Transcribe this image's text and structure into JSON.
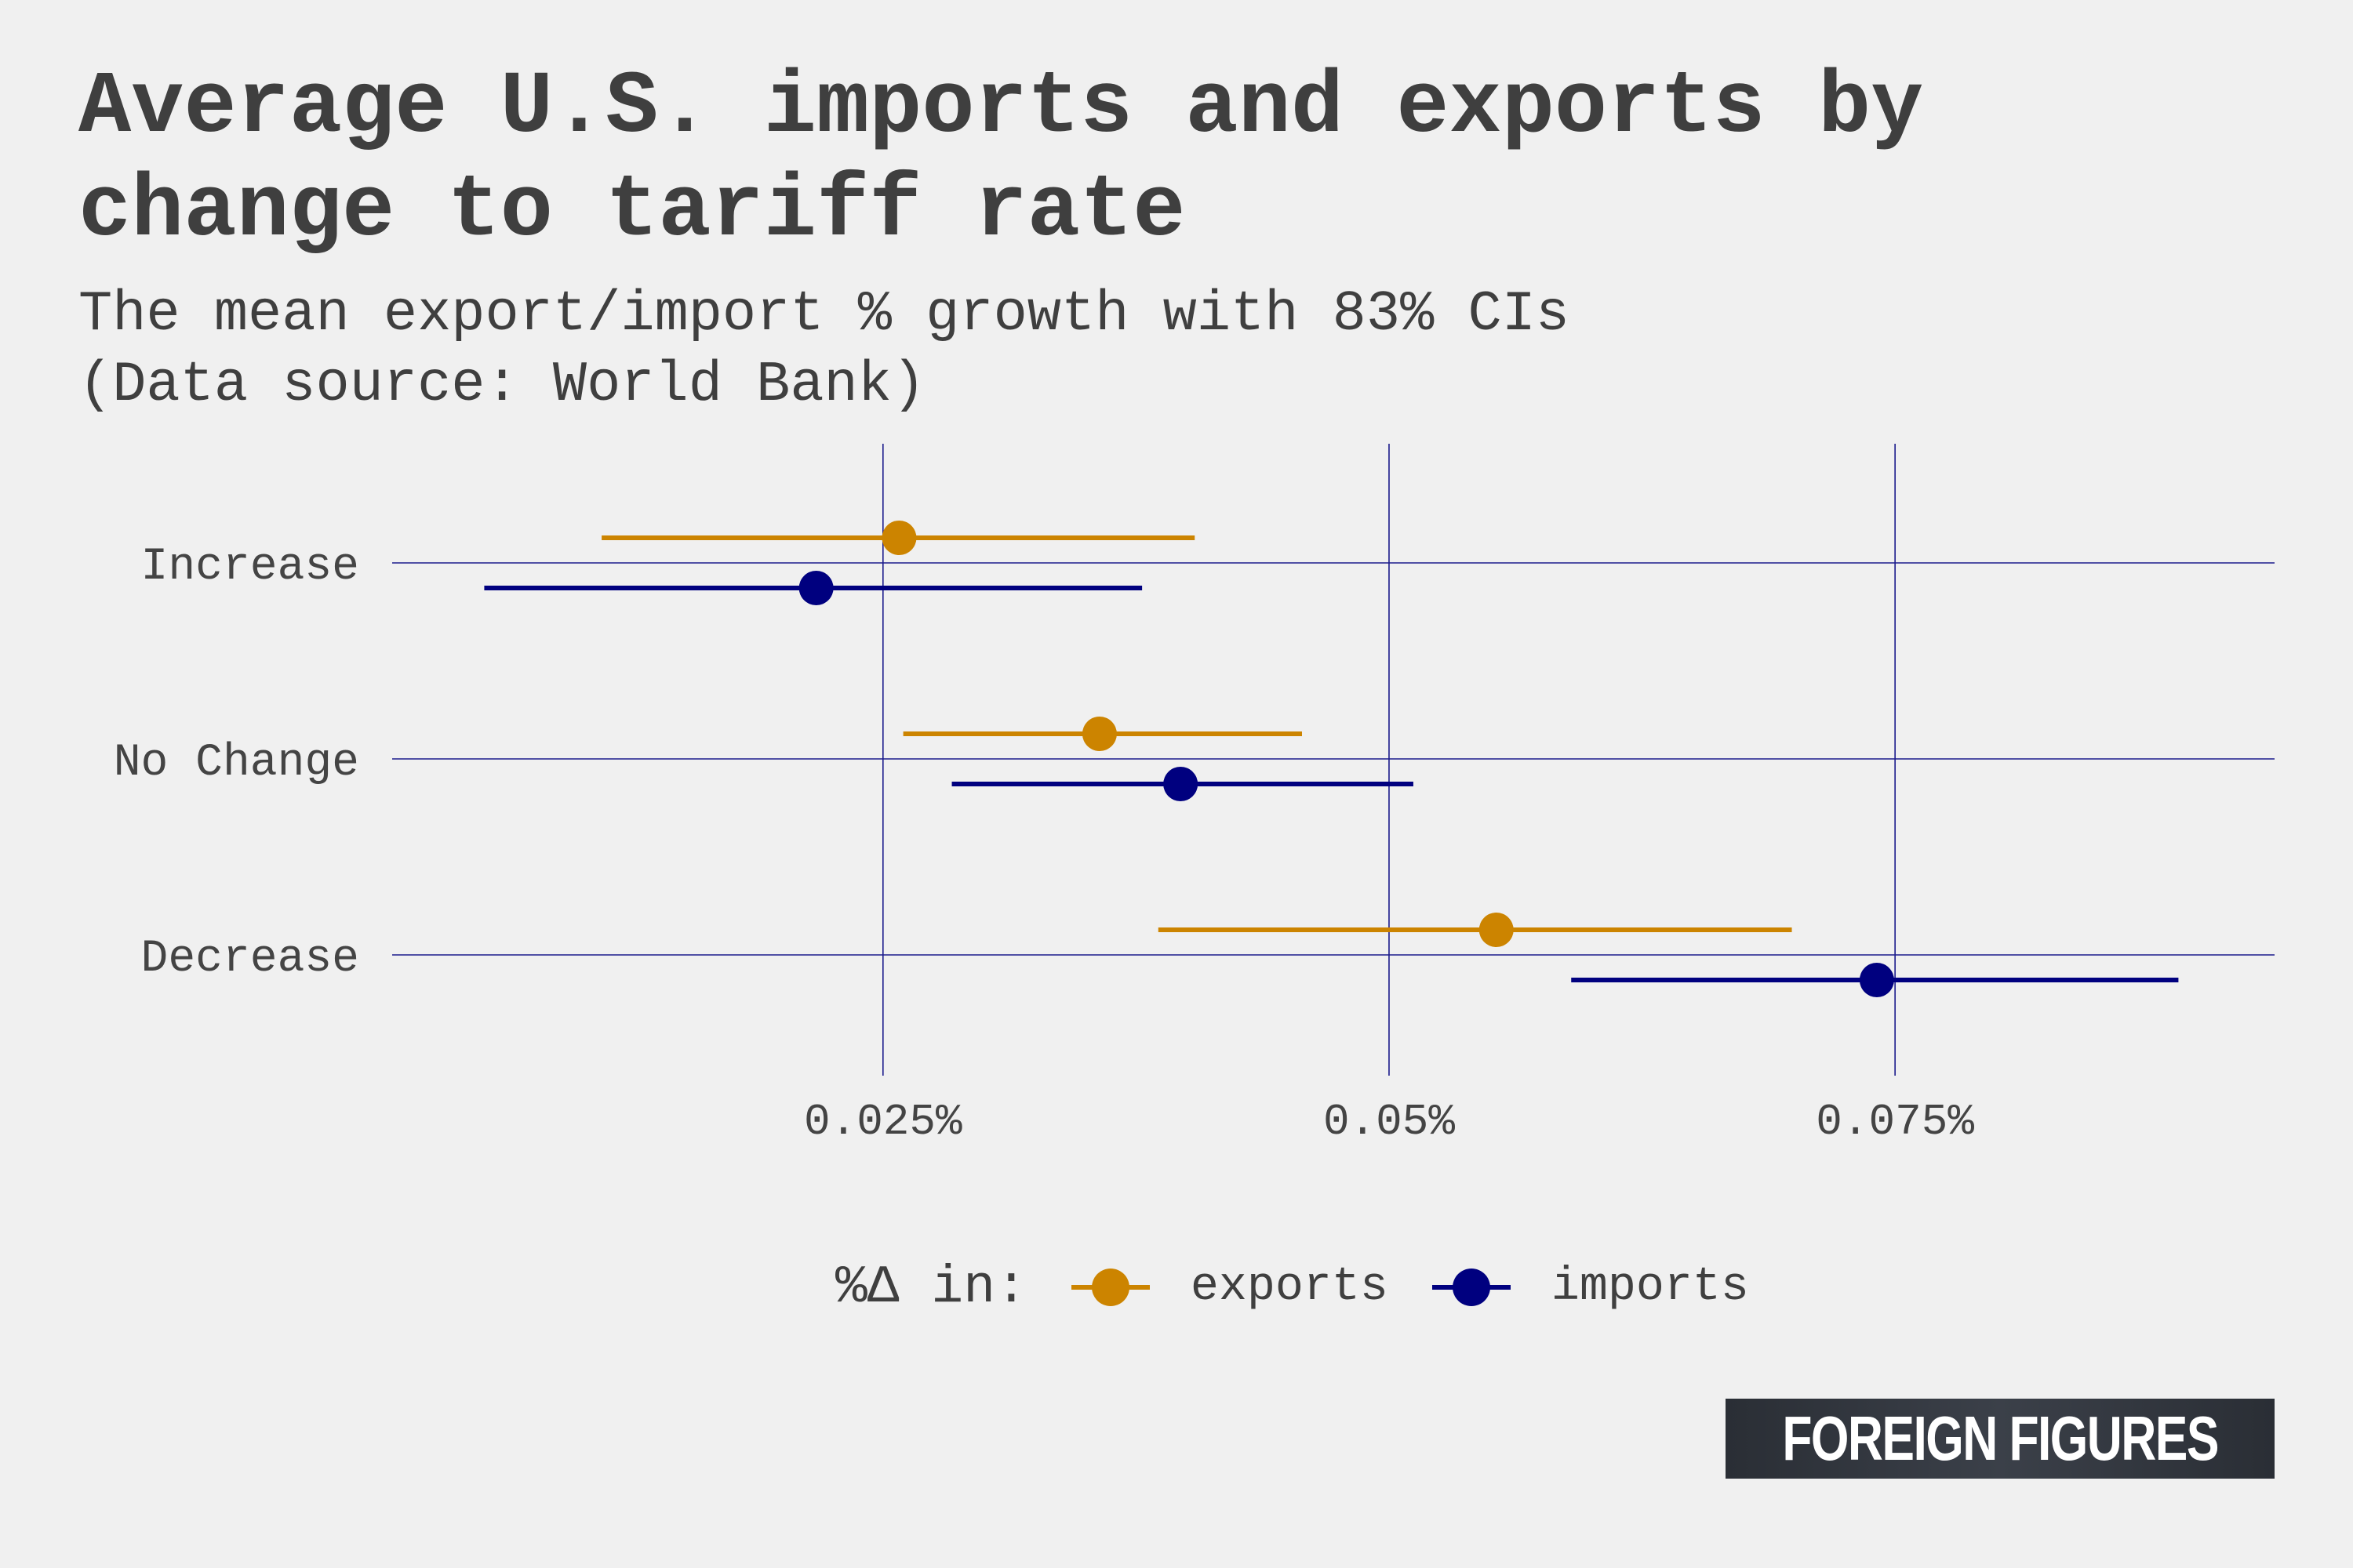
{
  "title": "Average U.S. imports and exports by change to tariff rate",
  "subtitle_line1": "The mean export/import % growth with 83% CIs",
  "subtitle_line2": "(Data source: World Bank)",
  "legend": {
    "title": "%Δ in:",
    "items": [
      {
        "label": "exports",
        "color": "#cc8400"
      },
      {
        "label": "imports",
        "color": "#00007f"
      }
    ]
  },
  "logo_text": "FOREIGN FIGURES",
  "chart_data": {
    "type": "pointrange",
    "title": "Average U.S. imports and exports by change to tariff rate",
    "subtitle": "The mean export/import % growth with 83% CIs (Data source: World Bank)",
    "categories": [
      "Increase",
      "No Change",
      "Decrease"
    ],
    "x_ticks": [
      0.025,
      0.05,
      0.075
    ],
    "x_tick_labels": [
      "0.025%",
      "0.05%",
      "0.075%"
    ],
    "xlim": [
      0.00075,
      0.09375
    ],
    "grid": true,
    "legend_position": "bottom",
    "series": [
      {
        "name": "exports",
        "color": "#cc8400",
        "points": [
          {
            "category": "Increase",
            "mean": 0.0258,
            "lower": 0.0111,
            "upper": 0.0404
          },
          {
            "category": "No Change",
            "mean": 0.0357,
            "lower": 0.026,
            "upper": 0.0457
          },
          {
            "category": "Decrease",
            "mean": 0.0553,
            "lower": 0.0386,
            "upper": 0.0699
          }
        ]
      },
      {
        "name": "imports",
        "color": "#00007f",
        "points": [
          {
            "category": "Increase",
            "mean": 0.0217,
            "lower": 0.0053,
            "upper": 0.0378
          },
          {
            "category": "No Change",
            "mean": 0.0397,
            "lower": 0.0284,
            "upper": 0.0512
          },
          {
            "category": "Decrease",
            "mean": 0.0741,
            "lower": 0.059,
            "upper": 0.089
          }
        ]
      }
    ]
  }
}
